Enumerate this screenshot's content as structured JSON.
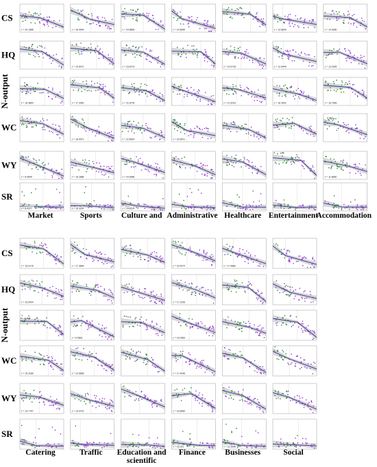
{
  "figure": {
    "panels": [
      {
        "row_labels": [
          "CS",
          "HQ",
          "N-output",
          "WC",
          "WY",
          "SR"
        ],
        "column_labels": [
          "Market",
          "Sports",
          "Culture and",
          "Administrative",
          "Healthcare",
          "Entertainment",
          "Accommodation"
        ]
      },
      {
        "row_labels": [
          "CS",
          "HQ",
          "N-output",
          "WC",
          "WY",
          "SR"
        ],
        "column_labels": [
          "Catering",
          "Traffic",
          "Education and scientific",
          "Finance",
          "Businesses",
          "Social"
        ]
      }
    ],
    "colors": {
      "green_points": "#2e8b2e",
      "purple_points": "#9b3fd6",
      "fit_line": "#2b2f8c",
      "confidence_band": "#c9c9c9",
      "panel_border": "#9a9a9a"
    }
  },
  "chart_data": [
    {
      "type": "scatter",
      "panel": "top",
      "rows": [
        "CS",
        "HQ",
        "N-output",
        "WC",
        "WY",
        "SR"
      ],
      "columns": [
        "Market",
        "Sports",
        "Culture and",
        "Administrative",
        "Healthcare",
        "Entertainment",
        "Accommodation"
      ],
      "point_groups": [
        "green",
        "purple"
      ],
      "fit": "piecewise linear regression with confidence band",
      "equation_labels": [
        {
          "row": "CS",
          "column": "Market",
          "text": "x = 20.1688"
        },
        {
          "row": "CS",
          "column": "Sports",
          "text": "x = 16.4004"
        },
        {
          "row": "CS",
          "column": "Culture and",
          "text": "x = 24.9898"
        },
        {
          "row": "CS",
          "column": "Administrative",
          "text": "x = 14.8089"
        },
        {
          "row": "CS",
          "column": "Entertainment",
          "text": "x = 12.8849"
        },
        {
          "row": "CS",
          "column": "Accommodation",
          "text": "x = 14.9280"
        },
        {
          "row": "HQ",
          "column": "Sports",
          "text": "x = 19.6071"
        },
        {
          "row": "HQ",
          "column": "Culture and",
          "text": "x = 23.0073"
        },
        {
          "row": "HQ",
          "column": "Healthcare",
          "text": "x = 14.9728"
        },
        {
          "row": "HQ",
          "column": "Entertainment",
          "text": "x = 12.8449"
        },
        {
          "row": "HQ",
          "column": "Accommodation",
          "text": "x = 13.0326"
        },
        {
          "row": "N-output",
          "column": "Market",
          "text": "x = 16.3860"
        },
        {
          "row": "N-output",
          "column": "Sports",
          "text": "x = 17.3390"
        },
        {
          "row": "N-output",
          "column": "Culture and",
          "text": "x = 22.3278"
        },
        {
          "row": "N-output",
          "column": "Healthcare",
          "text": "x = 21.3203"
        },
        {
          "row": "N-output",
          "column": "Entertainment",
          "text": "x = 16.3902"
        },
        {
          "row": "N-output",
          "column": "Accommodation",
          "text": "x = 16.7646"
        },
        {
          "row": "WC",
          "column": "Sports",
          "text": "x = 16.9971"
        },
        {
          "row": "WC",
          "column": "Culture and",
          "text": "x = 22.9634"
        },
        {
          "row": "WC",
          "column": "Administrative",
          "text": "x = 16.9021"
        },
        {
          "row": "WY",
          "column": "Market",
          "text": "x = 8.4849"
        },
        {
          "row": "WY",
          "column": "Sports",
          "text": "x = 16.2888"
        },
        {
          "row": "WY",
          "column": "Culture and",
          "text": "x = 24.3988"
        },
        {
          "row": "WY",
          "column": "Accommodation",
          "text": "x = 11.8656"
        },
        {
          "row": "SR",
          "column": "Market",
          "text": "x = 8.0377"
        },
        {
          "row": "SR",
          "column": "Sports",
          "text": "x = 16.3224"
        },
        {
          "row": "SR",
          "column": "Culture and",
          "text": "x = 24.8314"
        }
      ]
    },
    {
      "type": "scatter",
      "panel": "bottom",
      "rows": [
        "CS",
        "HQ",
        "N-output",
        "WC",
        "WY",
        "SR"
      ],
      "columns": [
        "Catering",
        "Traffic",
        "Education and scientific",
        "Finance",
        "Businesses",
        "Social"
      ],
      "point_groups": [
        "green",
        "purple"
      ],
      "fit": "piecewise linear regression with confidence band",
      "equation_labels": [
        {
          "row": "CS",
          "column": "Catering",
          "text": "x = 15.0176"
        },
        {
          "row": "CS",
          "column": "Traffic",
          "text": "x = 17.3684"
        },
        {
          "row": "CS",
          "column": "Finance",
          "text": "x = 16.0074"
        },
        {
          "row": "CS",
          "column": "Businesses",
          "text": "x = 17.4880"
        },
        {
          "row": "HQ",
          "column": "Catering",
          "text": "x = 15.9004"
        },
        {
          "row": "HQ",
          "column": "Finance",
          "text": "x = 17.2206"
        },
        {
          "row": "N-output",
          "column": "Traffic",
          "text": "x = 6.5861"
        },
        {
          "row": "N-output",
          "column": "Finance",
          "text": "x = 16.0483"
        },
        {
          "row": "WC",
          "column": "Catering",
          "text": "x = 15.3189"
        },
        {
          "row": "WC",
          "column": "Traffic",
          "text": "x = 12.5835"
        },
        {
          "row": "WC",
          "column": "Finance",
          "text": "x = 17.4046"
        },
        {
          "row": "WY",
          "column": "Catering",
          "text": "x = 14.7767"
        },
        {
          "row": "WY",
          "column": "Traffic",
          "text": "x = 14.4741"
        },
        {
          "row": "WY",
          "column": "Finance",
          "text": "x = 16.8589"
        },
        {
          "row": "SR",
          "column": "Finance",
          "text": "x = 16.101"
        },
        {
          "row": "SR",
          "column": "Businesses",
          "text": "x = 12.2648"
        }
      ]
    }
  ]
}
